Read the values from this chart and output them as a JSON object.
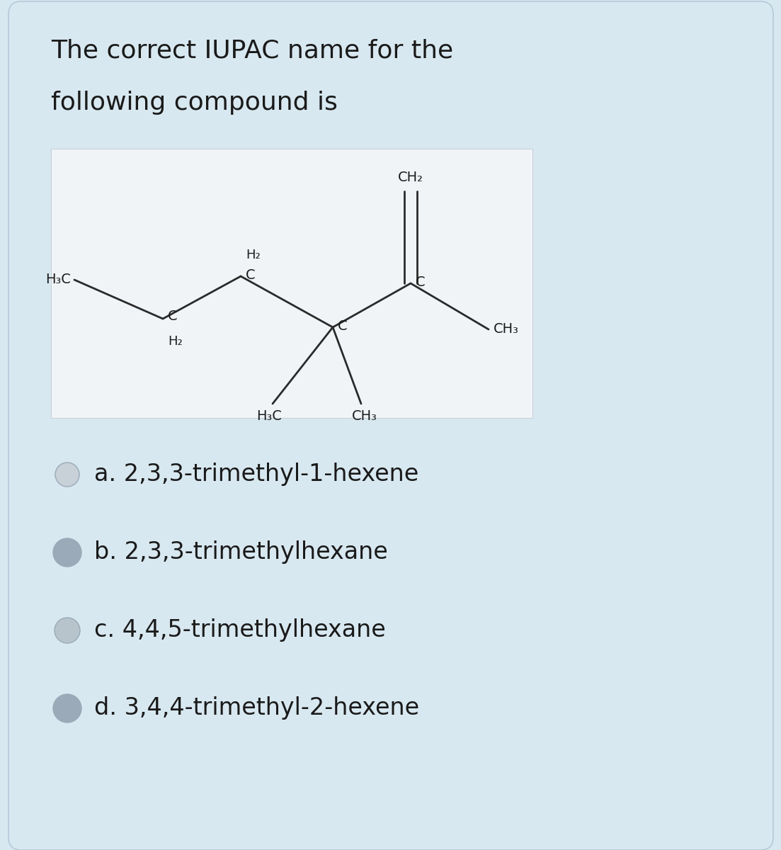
{
  "title_line1": "The correct IUPAC name for the",
  "title_line2": "following compound is",
  "bg_color": "#d8e8f0",
  "card_bg": "#d8e8f0",
  "struct_bg": "#f0f4f7",
  "text_color": "#1a1a1a",
  "options": [
    "a. 2,3,3-trimethyl-1-hexene",
    "b. 2,3,3-trimethylhexane",
    "c. 4,4,5-trimethylhexane",
    "d. 3,4,4-trimethyl-2-hexene"
  ],
  "radio_fill_a": "#c8d0d8",
  "radio_fill_b": "#9aaab8",
  "radio_fill_c": "#b8c4cc",
  "radio_fill_d": "#9aaab8",
  "radio_edge": "#9aaab8",
  "title_fontsize": 26,
  "option_fontsize": 24,
  "struct_fontsize": 14,
  "struct_label_fontsize": 13
}
